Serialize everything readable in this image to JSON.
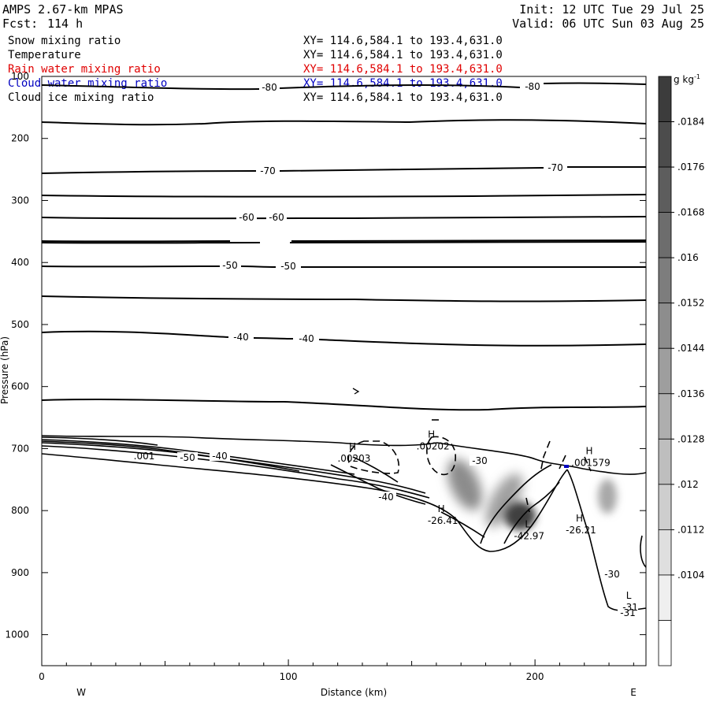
{
  "header": {
    "model": "AMPS 2.67-km MPAS",
    "fcst_label": "Fcst:",
    "fcst_value": "114 h",
    "init": "Init: 12 UTC Tue 29 Jul 25",
    "valid": "Valid: 06 UTC Sun 03 Aug 25"
  },
  "legend": [
    {
      "name": "Snow mixing ratio",
      "xy": "XY= 114.6,584.1 to 193.4,631.0",
      "color": "#000000"
    },
    {
      "name": "Temperature",
      "xy": "XY= 114.6,584.1 to 193.4,631.0",
      "color": "#000000"
    },
    {
      "name": "Rain water mixing ratio",
      "xy": "XY= 114.6,584.1 to 193.4,631.0",
      "color": "#e00000"
    },
    {
      "name": "Cloud water mixing ratio",
      "xy": "XY= 114.6,584.1 to 193.4,631.0",
      "color": "#0000c0"
    },
    {
      "name": "Cloud ice mixing ratio",
      "xy": "XY= 114.6,584.1 to 193.4,631.0",
      "color": "#000000"
    }
  ],
  "chart_data": {
    "type": "cross-section",
    "xlabel": "Distance (km)",
    "ylabel": "Pressure (hPa)",
    "xlim": [
      0,
      245
    ],
    "ylim": [
      1050,
      100
    ],
    "xticks": [
      0,
      100,
      200
    ],
    "yticks": [
      100,
      200,
      300,
      400,
      500,
      600,
      700,
      800,
      900,
      1000
    ],
    "left_label": "W",
    "right_label": "E",
    "colorbar": {
      "unit": "g kg",
      "unit_exp": "-1",
      "labels": [
        ".0184",
        ".0176",
        ".0168",
        ".016",
        ".0152",
        ".0144",
        ".0136",
        ".0128",
        ".012",
        ".0112",
        ".0104"
      ]
    },
    "temperature_labels": [
      "-80",
      "-80",
      "-70",
      "-70",
      "-60",
      "-60",
      "-50",
      "-50",
      "-40",
      "-40",
      "-30",
      "-40",
      "-50",
      "-40",
      "-30",
      "-31"
    ],
    "extrema": [
      {
        "type": "H",
        "value": ".00202",
        "x": 158,
        "p": 695
      },
      {
        "type": "H",
        "value": ".00203",
        "x": 126,
        "p": 715
      },
      {
        "type": "H",
        "value": ".001579",
        "x": 222,
        "p": 722
      },
      {
        "type": "H",
        "value": "-26.41",
        "x": 162,
        "p": 815
      },
      {
        "type": "L",
        "value": "-42.97",
        "x": 197,
        "p": 840
      },
      {
        "type": "H",
        "value": "-26.21",
        "x": 218,
        "p": 830
      },
      {
        "type": "L",
        "value": "-31",
        "x": 238,
        "p": 955
      }
    ],
    "misc_labels": [
      ".001"
    ]
  }
}
